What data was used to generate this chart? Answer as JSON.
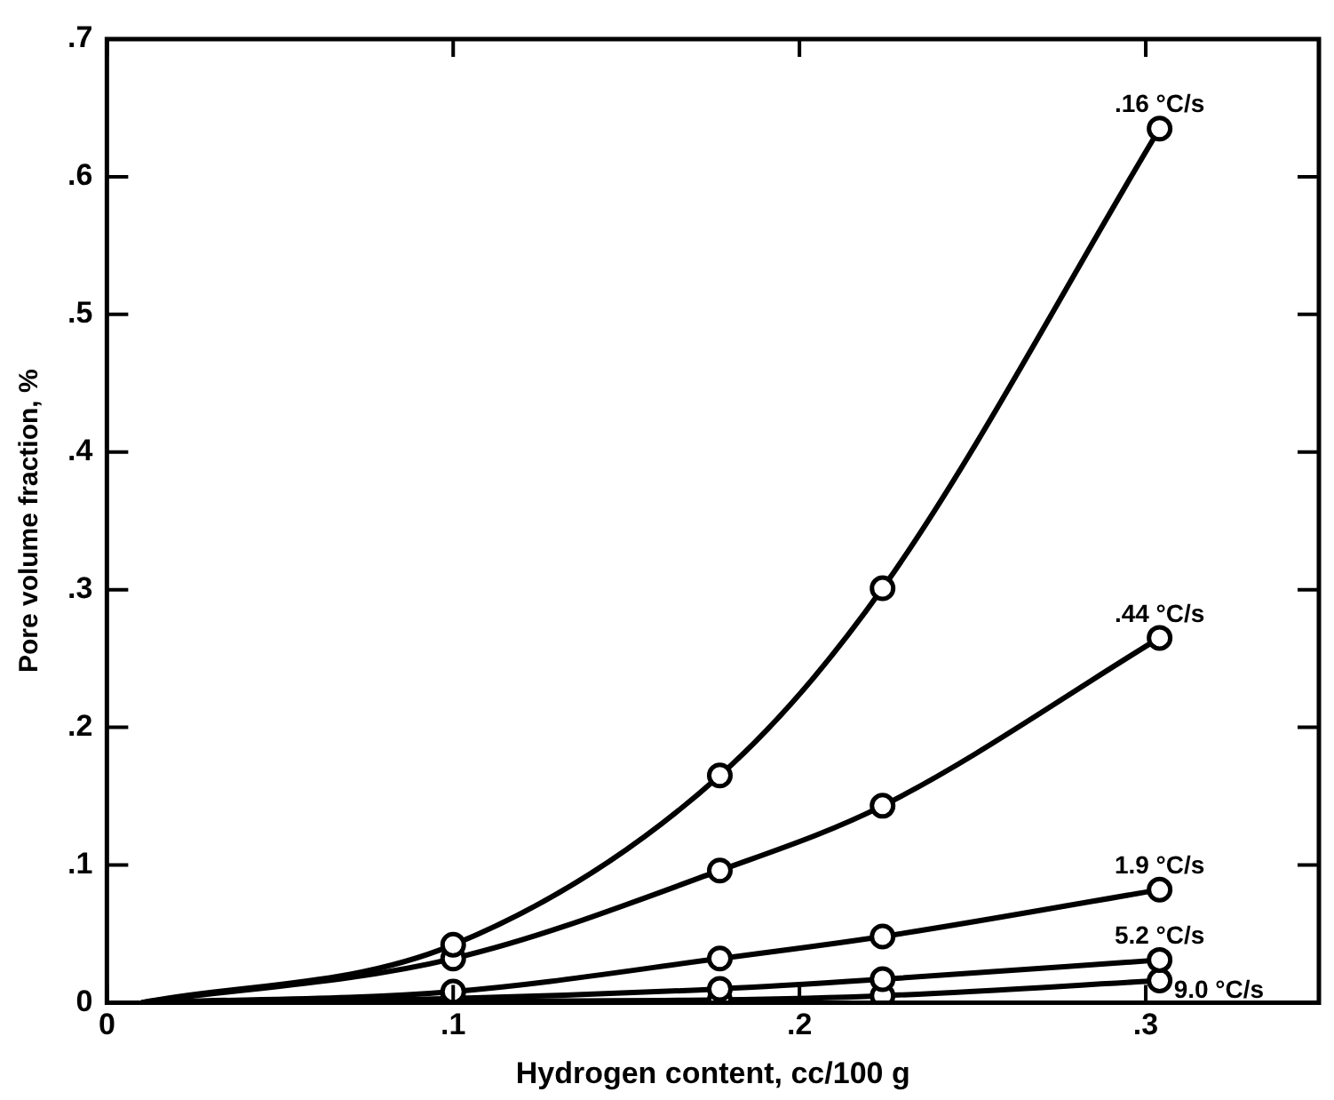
{
  "chart_data": {
    "type": "line",
    "xlabel": "Hydrogen content, cc/100 g",
    "ylabel": "Pore volume fraction, %",
    "x": [
      0.01,
      0.1,
      0.177,
      0.224,
      0.304
    ],
    "series": [
      {
        "name": ".16 °C/s",
        "color": "#000000",
        "values": [
          0,
          0.042,
          0.165,
          0.301,
          0.635
        ]
      },
      {
        "name": ".44 °C/s",
        "color": "#000000",
        "values": [
          0,
          0.032,
          0.096,
          0.143,
          0.265
        ]
      },
      {
        "name": "1.9 °C/s",
        "color": "#000000",
        "values": [
          0,
          0.008,
          0.032,
          0.048,
          0.082
        ]
      },
      {
        "name": "5.2 °C/s",
        "color": "#000000",
        "values": [
          0,
          0.003,
          0.01,
          0.017,
          0.031
        ]
      },
      {
        "name": "9.0 °C/s",
        "color": "#000000",
        "values": [
          0,
          0.001,
          0.002,
          0.005,
          0.016
        ]
      }
    ],
    "xlim": [
      0,
      0.35
    ],
    "xticks": [
      0,
      {
        "value": 0.1,
        "label": ".1"
      },
      {
        "value": 0.2,
        "label": ".2"
      },
      {
        "value": 0.3,
        "label": ".3"
      }
    ],
    "ylim": [
      0,
      0.7
    ],
    "yticks": [
      0,
      {
        "value": 0.1,
        "label": ".1"
      },
      {
        "value": 0.2,
        "label": ".2"
      },
      {
        "value": 0.3,
        "label": ".3"
      },
      {
        "value": 0.4,
        "label": ".4"
      },
      {
        "value": 0.5,
        "label": ".5"
      },
      {
        "value": 0.6,
        "label": ".6"
      },
      {
        "value": 0.7,
        "label": ".7"
      }
    ],
    "grid": false,
    "legend": false,
    "marker": "circle",
    "line_style": "solid"
  }
}
